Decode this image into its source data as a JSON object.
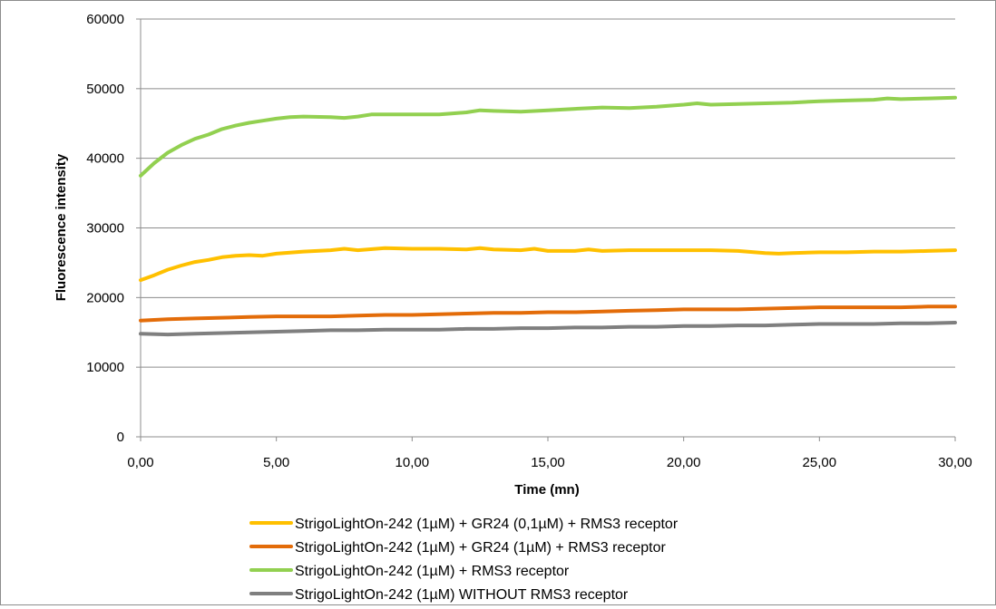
{
  "chart_data": {
    "type": "line",
    "title": "",
    "xlabel": "Time (mn)",
    "ylabel": "Fluorescence intensity",
    "xlim": [
      0,
      30
    ],
    "ylim": [
      0,
      60000
    ],
    "x_ticks": [
      "0,00",
      "5,00",
      "10,00",
      "15,00",
      "20,00",
      "25,00",
      "30,00"
    ],
    "y_ticks": [
      "0",
      "10000",
      "20000",
      "30000",
      "40000",
      "50000",
      "60000"
    ],
    "grid": "horizontal",
    "legend_position": "bottom",
    "series": [
      {
        "name": "StrigoLightOn-242 (1µM) + GR24 (0,1µM) + RMS3 receptor",
        "color": "#ffc000",
        "x": [
          0,
          0.5,
          1,
          1.5,
          2,
          2.5,
          3,
          3.5,
          4,
          4.5,
          5,
          6,
          7,
          7.5,
          8,
          9,
          10,
          11,
          12,
          12.5,
          13,
          14,
          14.5,
          15,
          16,
          16.5,
          17,
          18,
          19,
          20,
          21,
          22,
          23,
          23.5,
          24,
          25,
          26,
          27,
          28,
          29,
          30
        ],
        "y": [
          22500,
          23200,
          24000,
          24600,
          25100,
          25400,
          25800,
          26000,
          26100,
          26000,
          26300,
          26600,
          26800,
          27000,
          26800,
          27100,
          27000,
          27000,
          26900,
          27100,
          26900,
          26800,
          27000,
          26700,
          26700,
          26900,
          26700,
          26800,
          26800,
          26800,
          26800,
          26700,
          26400,
          26300,
          26400,
          26500,
          26500,
          26600,
          26600,
          26700,
          26800
        ]
      },
      {
        "name": "StrigoLightOn-242 (1µM) + GR24 (1µM) + RMS3 receptor",
        "color": "#e36c09",
        "x": [
          0,
          1,
          2,
          3,
          4,
          5,
          6,
          7,
          8,
          9,
          10,
          11,
          12,
          13,
          14,
          15,
          16,
          17,
          18,
          19,
          20,
          21,
          22,
          23,
          24,
          25,
          26,
          27,
          28,
          29,
          30
        ],
        "y": [
          16700,
          16900,
          17000,
          17100,
          17200,
          17300,
          17300,
          17300,
          17400,
          17500,
          17500,
          17600,
          17700,
          17800,
          17800,
          17900,
          17900,
          18000,
          18100,
          18200,
          18300,
          18300,
          18300,
          18400,
          18500,
          18600,
          18600,
          18600,
          18600,
          18700,
          18700
        ]
      },
      {
        "name": "StrigoLightOn-242 (1µM) + RMS3 receptor",
        "color": "#92d050",
        "x": [
          0,
          0.5,
          1,
          1.5,
          2,
          2.5,
          3,
          3.5,
          4,
          4.5,
          5,
          5.5,
          6,
          7,
          7.5,
          8,
          8.5,
          9,
          10,
          11,
          12,
          12.5,
          13,
          14,
          15,
          16,
          17,
          18,
          19,
          20,
          20.5,
          21,
          22,
          23,
          24,
          25,
          26,
          27,
          27.5,
          28,
          29,
          30
        ],
        "y": [
          37500,
          39300,
          40800,
          41900,
          42800,
          43400,
          44200,
          44700,
          45100,
          45400,
          45700,
          45900,
          46000,
          45900,
          45800,
          46000,
          46300,
          46300,
          46300,
          46300,
          46600,
          46900,
          46800,
          46700,
          46900,
          47100,
          47300,
          47200,
          47400,
          47700,
          47900,
          47700,
          47800,
          47900,
          48000,
          48200,
          48300,
          48400,
          48600,
          48500,
          48600,
          48700
        ]
      },
      {
        "name": "StrigoLightOn-242 (1µM) WITHOUT RMS3 receptor",
        "color": "#7f7f7f",
        "x": [
          0,
          1,
          2,
          3,
          4,
          5,
          6,
          7,
          8,
          9,
          10,
          11,
          12,
          13,
          14,
          15,
          16,
          17,
          18,
          19,
          20,
          21,
          22,
          23,
          24,
          25,
          26,
          27,
          28,
          29,
          30
        ],
        "y": [
          14800,
          14700,
          14800,
          14900,
          15000,
          15100,
          15200,
          15300,
          15300,
          15400,
          15400,
          15400,
          15500,
          15500,
          15600,
          15600,
          15700,
          15700,
          15800,
          15800,
          15900,
          15900,
          16000,
          16000,
          16100,
          16200,
          16200,
          16200,
          16300,
          16300,
          16400
        ]
      }
    ]
  }
}
